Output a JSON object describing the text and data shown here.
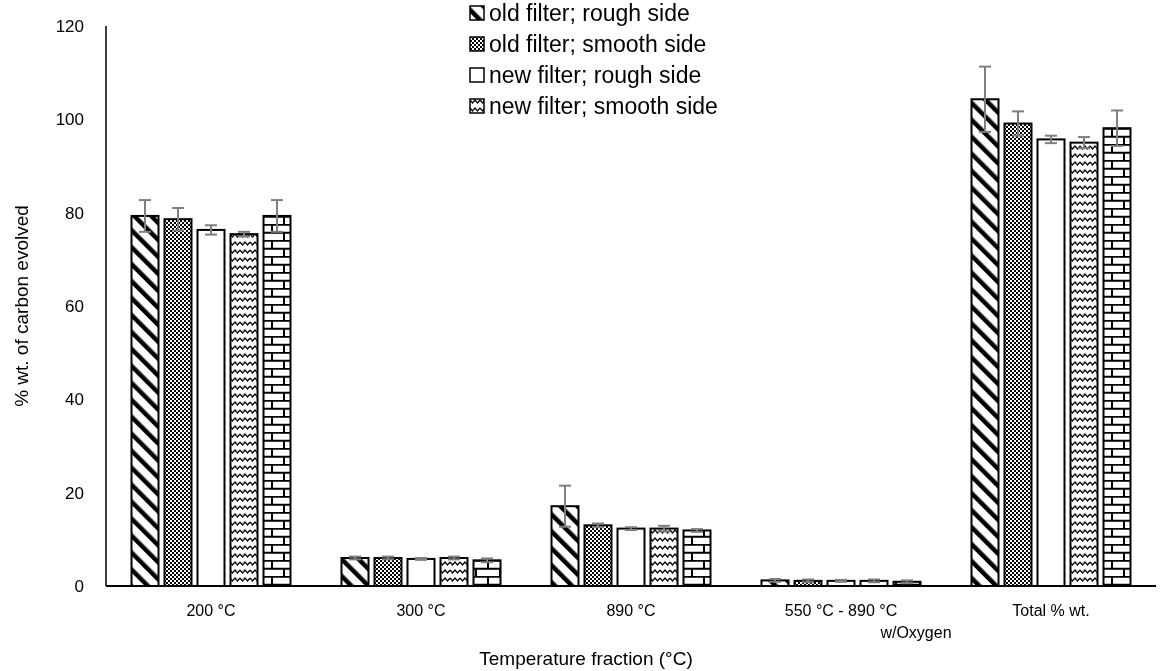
{
  "chart_data": {
    "type": "bar",
    "xlabel": "Temperature fraction (°C)",
    "ylabel": "% wt. of carbon evolved",
    "categories": [
      "200 °C",
      "300 °C",
      "890 °C",
      "550 °C - 890 °C\nw/Oxygen",
      "Total % wt."
    ],
    "ylim": [
      0,
      120
    ],
    "yticks": [
      0,
      20,
      40,
      60,
      80,
      100,
      120
    ],
    "grid": false,
    "legend": "top",
    "series": [
      {
        "name": "old filter; rough side",
        "color": "#000000",
        "values": [
          79.3,
          6.0,
          17.1,
          1.2,
          104.3
        ],
        "errors": [
          3.4,
          0.3,
          4.4,
          0.3,
          7
        ]
      },
      {
        "name": "old filter; smooth side",
        "color": "#000000",
        "values": [
          78.6,
          6.0,
          13.0,
          1.1,
          99.1
        ],
        "errors": [
          2.4,
          0.3,
          0.4,
          0.3,
          2.6
        ]
      },
      {
        "name": "new filter; rough side",
        "color": "#000000",
        "values": [
          76.3,
          5.8,
          12.3,
          1.1,
          95.7
        ],
        "errors": [
          1.0,
          0.2,
          0.3,
          0.2,
          0.8
        ]
      },
      {
        "name": "new filter; smooth side",
        "color": "#000000",
        "values": [
          75.4,
          6.0,
          12.3,
          1.1,
          95.0
        ],
        "errors": [
          0.5,
          0.3,
          0.6,
          0.3,
          1.2
        ]
      },
      {
        "color": "#000000",
        "values": [
          79.3,
          5.5,
          11.9,
          0.9,
          98.1
        ],
        "errors": [
          3.4,
          0.4,
          0.3,
          0.3,
          3.8
        ]
      }
    ]
  }
}
